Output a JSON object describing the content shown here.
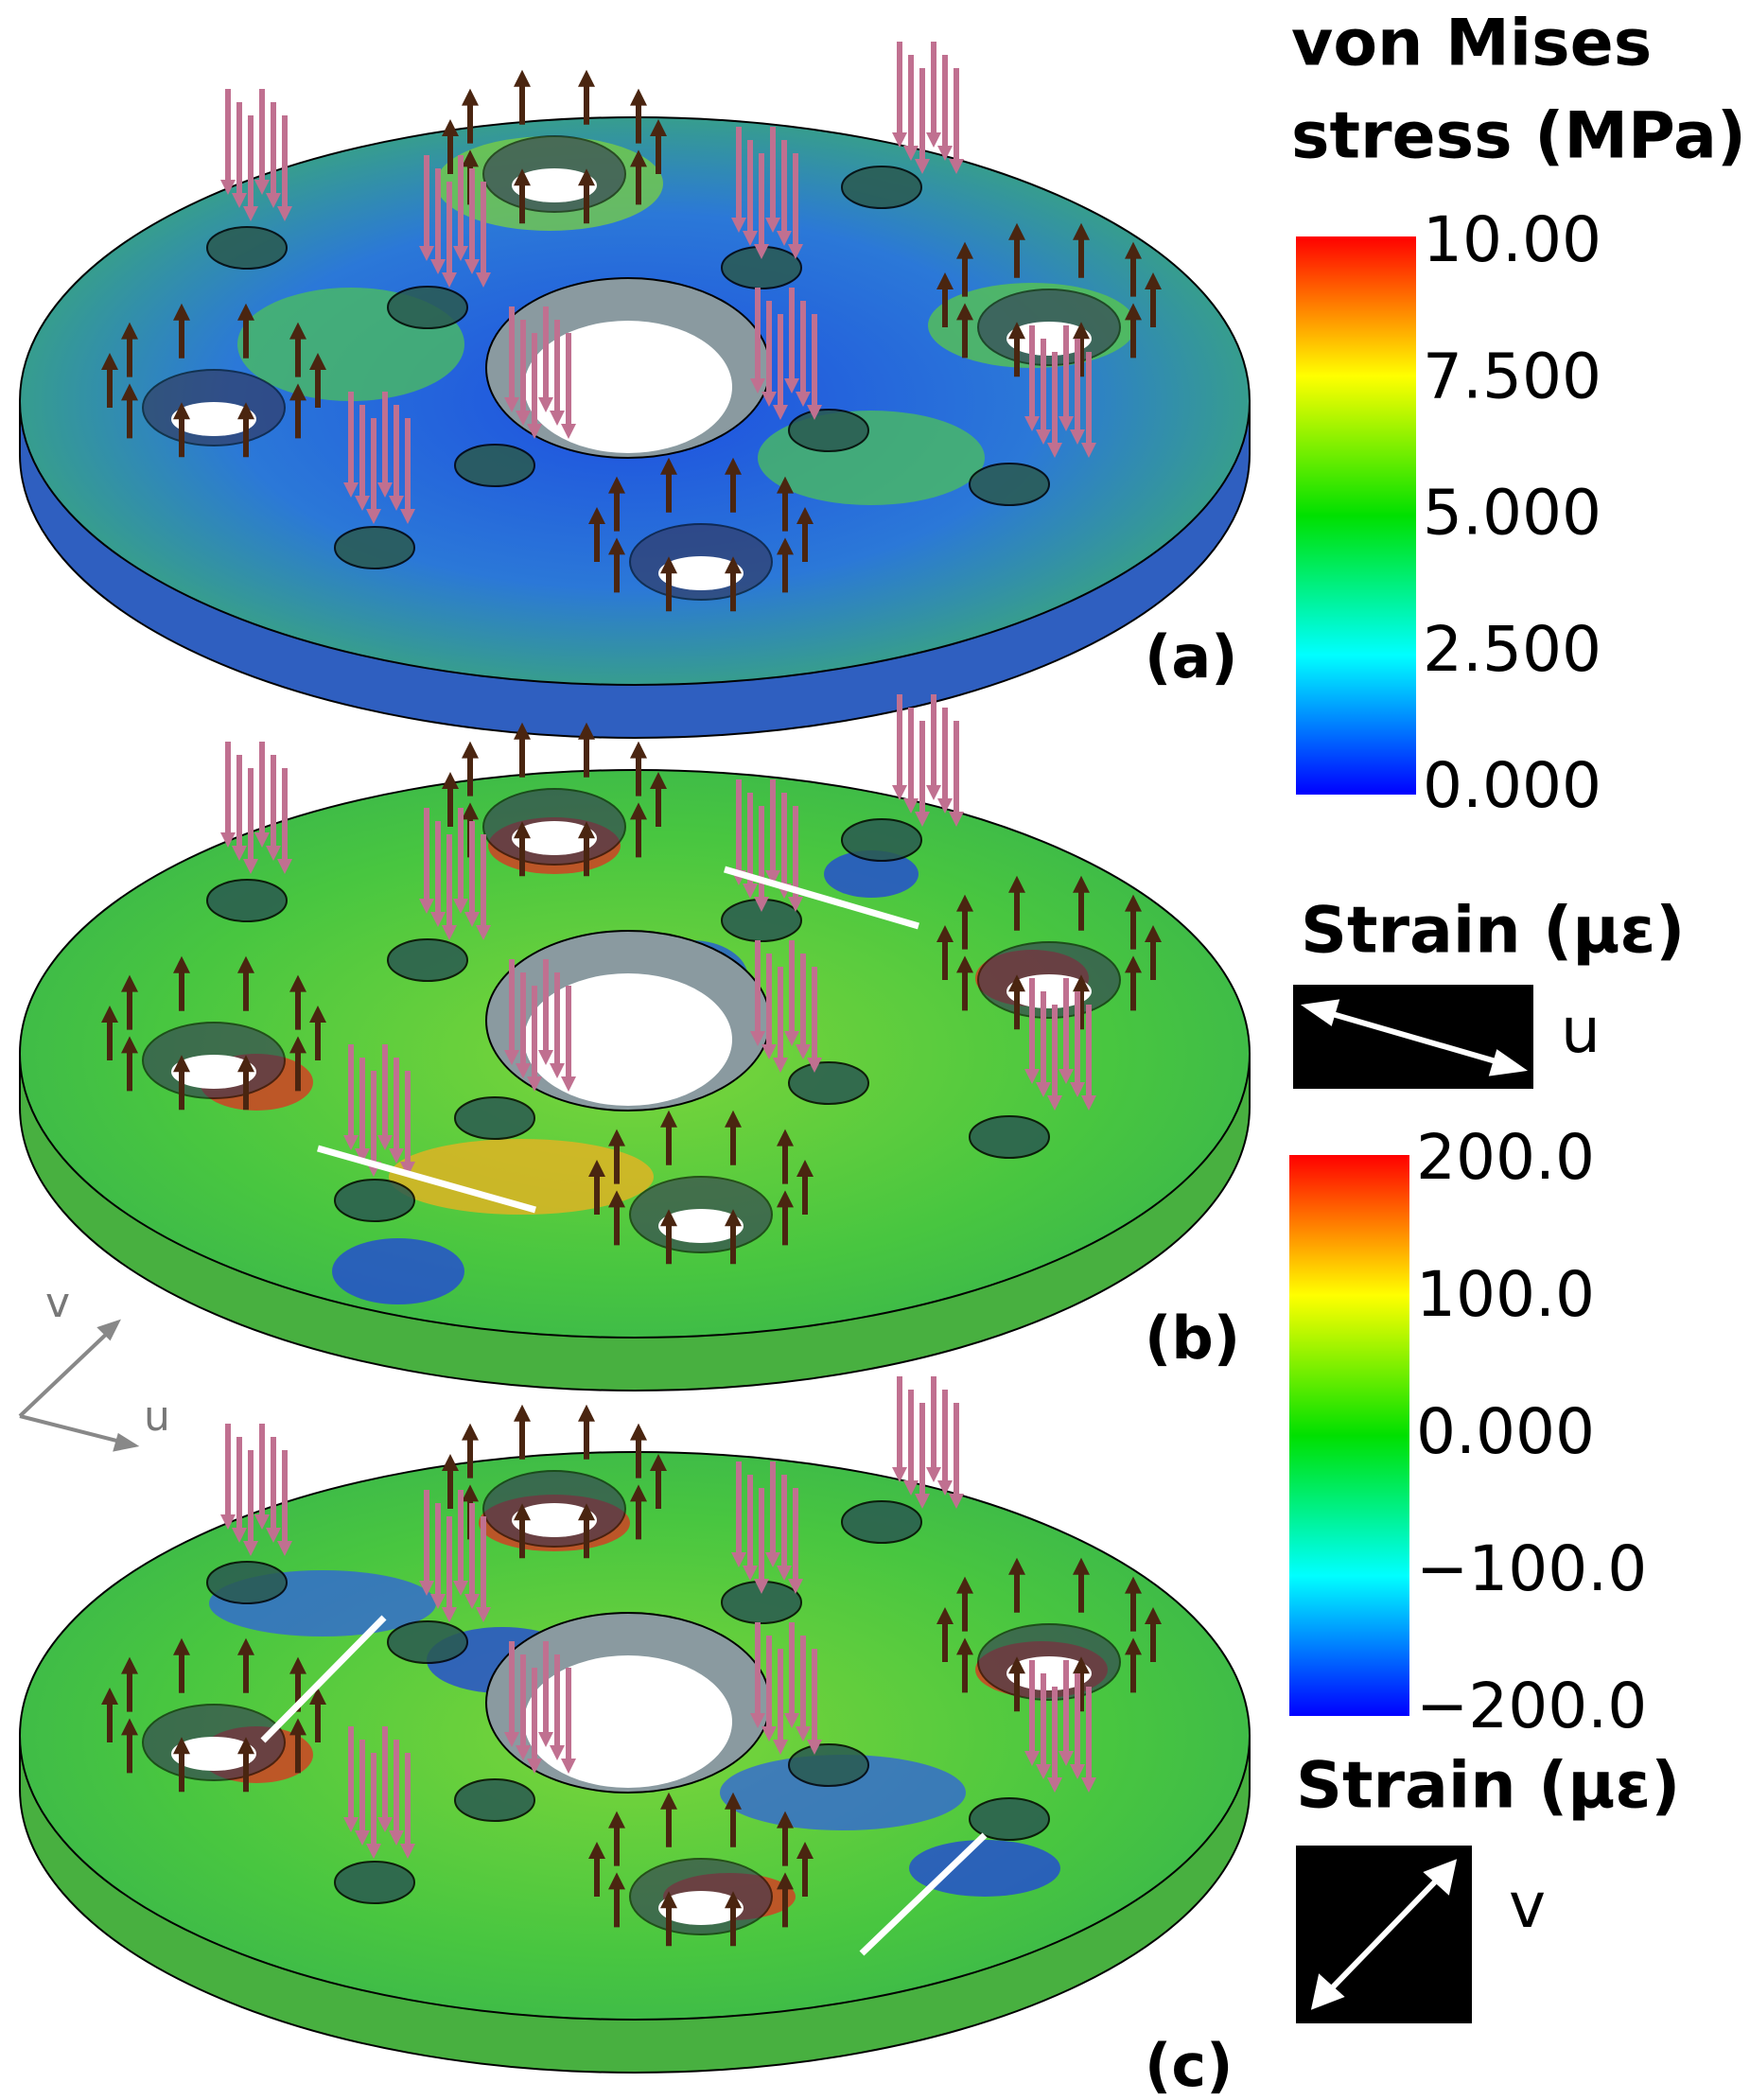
{
  "legend_a": {
    "title_lines": [
      "von Mises",
      "stress (MPa)"
    ],
    "ticks": [
      "10.00",
      "7.500",
      "5.000",
      "2.500",
      "0.000"
    ]
  },
  "legend_u": {
    "title": "Strain (με)",
    "direction": "u"
  },
  "legend_strain": {
    "ticks": [
      "200.0",
      "100.0",
      "0.000",
      "−100.0",
      "−200.0"
    ]
  },
  "legend_v": {
    "title": "Strain (με)",
    "direction": "v"
  },
  "panels": [
    "(a)",
    "(b)",
    "(c)"
  ],
  "axes": {
    "v": "v",
    "u": "u"
  }
}
